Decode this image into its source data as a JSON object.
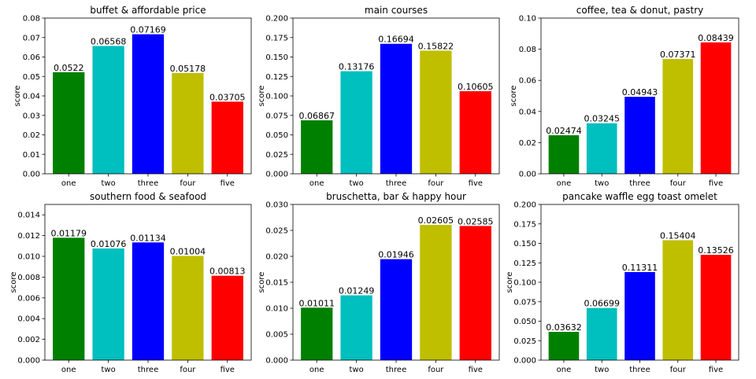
{
  "chart_data": [
    {
      "type": "bar",
      "title": "buffet & affordable price",
      "ylabel": "score",
      "categories": [
        "one",
        "two",
        "three",
        "four",
        "five"
      ],
      "values": [
        0.0522,
        0.06568,
        0.07169,
        0.05178,
        0.03705
      ],
      "value_labels": [
        "0.0522",
        "0.06568",
        "0.07169",
        "0.05178",
        "0.03705"
      ],
      "ylim": [
        0,
        0.08
      ],
      "yticks": [
        "0.00",
        "0.01",
        "0.02",
        "0.03",
        "0.04",
        "0.05",
        "0.06",
        "0.07",
        "0.08"
      ]
    },
    {
      "type": "bar",
      "title": "main courses",
      "ylabel": "score",
      "categories": [
        "one",
        "two",
        "three",
        "four",
        "five"
      ],
      "values": [
        0.06867,
        0.13176,
        0.16694,
        0.15822,
        0.10605
      ],
      "value_labels": [
        "0.06867",
        "0.13176",
        "0.16694",
        "0.15822",
        "0.10605"
      ],
      "ylim": [
        0,
        0.2
      ],
      "yticks": [
        "0.000",
        "0.025",
        "0.050",
        "0.075",
        "0.100",
        "0.125",
        "0.150",
        "0.175",
        "0.200"
      ]
    },
    {
      "type": "bar",
      "title": "coffee, tea & donut, pastry",
      "ylabel": "score",
      "categories": [
        "one",
        "two",
        "three",
        "four",
        "five"
      ],
      "values": [
        0.02474,
        0.03245,
        0.04943,
        0.07371,
        0.08439
      ],
      "value_labels": [
        "0.02474",
        "0.03245",
        "0.04943",
        "0.07371",
        "0.08439"
      ],
      "ylim": [
        0,
        0.1
      ],
      "yticks": [
        "0.00",
        "0.02",
        "0.04",
        "0.06",
        "0.08",
        "0.10"
      ]
    },
    {
      "type": "bar",
      "title": "southern food & seafood",
      "ylabel": "score",
      "categories": [
        "one",
        "two",
        "three",
        "four",
        "five"
      ],
      "values": [
        0.01179,
        0.01076,
        0.01134,
        0.01004,
        0.00813
      ],
      "value_labels": [
        "0.01179",
        "0.01076",
        "0.01134",
        "0.01004",
        "0.00813"
      ],
      "ylim": [
        0,
        0.015
      ],
      "yticks": [
        "0.000",
        "0.002",
        "0.004",
        "0.006",
        "0.008",
        "0.010",
        "0.012",
        "0.014"
      ]
    },
    {
      "type": "bar",
      "title": "bruschetta, bar & happy hour",
      "ylabel": "score",
      "categories": [
        "one",
        "two",
        "three",
        "four",
        "five"
      ],
      "values": [
        0.01011,
        0.01249,
        0.01946,
        0.02605,
        0.02585
      ],
      "value_labels": [
        "0.01011",
        "0.01249",
        "0.01946",
        "0.02605",
        "0.02585"
      ],
      "ylim": [
        0,
        0.03
      ],
      "yticks": [
        "0.000",
        "0.005",
        "0.010",
        "0.015",
        "0.020",
        "0.025",
        "0.030"
      ]
    },
    {
      "type": "bar",
      "title": "pancake waffle egg toast omelet",
      "ylabel": "score",
      "categories": [
        "one",
        "two",
        "three",
        "four",
        "five"
      ],
      "values": [
        0.03632,
        0.06699,
        0.11311,
        0.15404,
        0.13526
      ],
      "value_labels": [
        "0.03632",
        "0.06699",
        "0.11311",
        "0.15404",
        "0.13526"
      ],
      "ylim": [
        0,
        0.2
      ],
      "yticks": [
        "0.000",
        "0.025",
        "0.050",
        "0.075",
        "0.100",
        "0.125",
        "0.150",
        "0.175",
        "0.200"
      ]
    }
  ],
  "bar_colors": [
    "#008000",
    "#00bfbf",
    "#0000ff",
    "#bfbf00",
    "#ff0000"
  ],
  "grid": false,
  "legend": "none"
}
